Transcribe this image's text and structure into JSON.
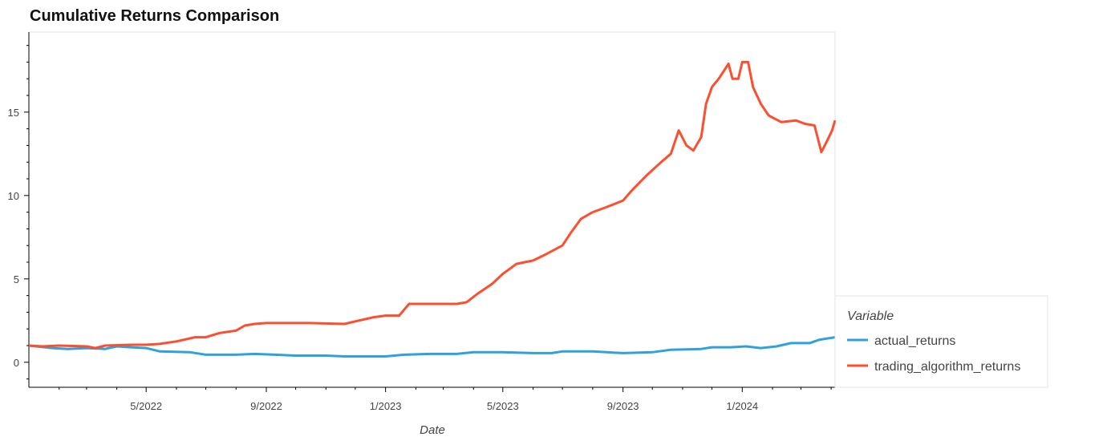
{
  "chart_data": {
    "type": "line",
    "title": "Cumulative Returns Comparison",
    "xlabel": "Date",
    "ylabel": "",
    "x_type": "date",
    "xlim": [
      "2022-01-01",
      "2024-04-05"
    ],
    "ylim": [
      -1.5,
      19.8
    ],
    "x_ticks": [
      {
        "date": "2022-05-01",
        "label": "5/2022"
      },
      {
        "date": "2022-09-01",
        "label": "9/2022"
      },
      {
        "date": "2023-01-01",
        "label": "1/2023"
      },
      {
        "date": "2023-05-01",
        "label": "5/2023"
      },
      {
        "date": "2023-09-01",
        "label": "9/2023"
      },
      {
        "date": "2024-01-01",
        "label": "1/2024"
      }
    ],
    "y_ticks": [
      0,
      5,
      10,
      15
    ],
    "y_minor_step": 1,
    "grid": false,
    "legend": {
      "title": "Variable",
      "placement": "right"
    },
    "series": [
      {
        "name": "actual_returns",
        "color": "#30a2da",
        "points": [
          [
            "2022-01-01",
            1.0
          ],
          [
            "2022-01-25",
            0.85
          ],
          [
            "2022-02-10",
            0.8
          ],
          [
            "2022-03-01",
            0.85
          ],
          [
            "2022-03-20",
            0.8
          ],
          [
            "2022-04-01",
            0.95
          ],
          [
            "2022-04-15",
            0.9
          ],
          [
            "2022-05-01",
            0.85
          ],
          [
            "2022-05-15",
            0.65
          ],
          [
            "2022-06-15",
            0.6
          ],
          [
            "2022-07-01",
            0.45
          ],
          [
            "2022-08-01",
            0.45
          ],
          [
            "2022-08-20",
            0.5
          ],
          [
            "2022-09-10",
            0.45
          ],
          [
            "2022-10-01",
            0.4
          ],
          [
            "2022-11-01",
            0.4
          ],
          [
            "2022-11-20",
            0.35
          ],
          [
            "2022-12-15",
            0.35
          ],
          [
            "2023-01-01",
            0.35
          ],
          [
            "2023-01-20",
            0.45
          ],
          [
            "2023-02-15",
            0.5
          ],
          [
            "2023-03-15",
            0.5
          ],
          [
            "2023-04-01",
            0.6
          ],
          [
            "2023-05-01",
            0.6
          ],
          [
            "2023-06-01",
            0.55
          ],
          [
            "2023-06-20",
            0.55
          ],
          [
            "2023-07-01",
            0.65
          ],
          [
            "2023-08-01",
            0.65
          ],
          [
            "2023-09-01",
            0.55
          ],
          [
            "2023-10-01",
            0.6
          ],
          [
            "2023-10-20",
            0.75
          ],
          [
            "2023-11-20",
            0.8
          ],
          [
            "2023-12-01",
            0.9
          ],
          [
            "2023-12-20",
            0.9
          ],
          [
            "2024-01-05",
            0.95
          ],
          [
            "2024-01-20",
            0.85
          ],
          [
            "2024-02-05",
            0.95
          ],
          [
            "2024-02-20",
            1.15
          ],
          [
            "2024-03-10",
            1.15
          ],
          [
            "2024-03-20",
            1.35
          ],
          [
            "2024-04-05",
            1.5
          ]
        ]
      },
      {
        "name": "trading_algorithm_returns",
        "color": "#fc4f30",
        "points": [
          [
            "2022-01-01",
            1.0
          ],
          [
            "2022-01-15",
            0.95
          ],
          [
            "2022-02-01",
            1.0
          ],
          [
            "2022-03-01",
            0.95
          ],
          [
            "2022-03-10",
            0.85
          ],
          [
            "2022-03-20",
            1.0
          ],
          [
            "2022-04-15",
            1.05
          ],
          [
            "2022-05-01",
            1.05
          ],
          [
            "2022-05-15",
            1.1
          ],
          [
            "2022-06-01",
            1.25
          ],
          [
            "2022-06-20",
            1.5
          ],
          [
            "2022-07-01",
            1.5
          ],
          [
            "2022-07-15",
            1.75
          ],
          [
            "2022-08-01",
            1.9
          ],
          [
            "2022-08-10",
            2.2
          ],
          [
            "2022-08-20",
            2.3
          ],
          [
            "2022-09-01",
            2.35
          ],
          [
            "2022-10-15",
            2.35
          ],
          [
            "2022-11-20",
            2.3
          ],
          [
            "2022-12-01",
            2.45
          ],
          [
            "2022-12-20",
            2.7
          ],
          [
            "2023-01-01",
            2.8
          ],
          [
            "2023-01-15",
            2.8
          ],
          [
            "2023-01-25",
            3.5
          ],
          [
            "2023-02-20",
            3.5
          ],
          [
            "2023-03-15",
            3.5
          ],
          [
            "2023-03-25",
            3.6
          ],
          [
            "2023-04-05",
            4.1
          ],
          [
            "2023-04-20",
            4.7
          ],
          [
            "2023-05-01",
            5.3
          ],
          [
            "2023-05-15",
            5.9
          ],
          [
            "2023-06-01",
            6.1
          ],
          [
            "2023-06-15",
            6.5
          ],
          [
            "2023-07-01",
            7.0
          ],
          [
            "2023-07-10",
            7.8
          ],
          [
            "2023-07-20",
            8.6
          ],
          [
            "2023-08-01",
            9.0
          ],
          [
            "2023-08-15",
            9.3
          ],
          [
            "2023-09-01",
            9.7
          ],
          [
            "2023-09-10",
            10.3
          ],
          [
            "2023-09-25",
            11.2
          ],
          [
            "2023-10-10",
            12.0
          ],
          [
            "2023-10-20",
            12.5
          ],
          [
            "2023-10-28",
            13.9
          ],
          [
            "2023-11-05",
            13.0
          ],
          [
            "2023-11-12",
            12.7
          ],
          [
            "2023-11-20",
            13.5
          ],
          [
            "2023-11-25",
            15.5
          ],
          [
            "2023-12-01",
            16.5
          ],
          [
            "2023-12-08",
            17.0
          ],
          [
            "2023-12-18",
            17.9
          ],
          [
            "2023-12-22",
            17.0
          ],
          [
            "2023-12-28",
            17.0
          ],
          [
            "2024-01-01",
            18.0
          ],
          [
            "2024-01-07",
            18.0
          ],
          [
            "2024-01-12",
            16.5
          ],
          [
            "2024-01-20",
            15.5
          ],
          [
            "2024-01-28",
            14.8
          ],
          [
            "2024-02-10",
            14.4
          ],
          [
            "2024-02-25",
            14.5
          ],
          [
            "2024-03-05",
            14.3
          ],
          [
            "2024-03-15",
            14.2
          ],
          [
            "2024-03-22",
            12.6
          ],
          [
            "2024-03-28",
            13.3
          ],
          [
            "2024-04-02",
            13.9
          ],
          [
            "2024-04-05",
            14.5
          ]
        ]
      }
    ]
  }
}
